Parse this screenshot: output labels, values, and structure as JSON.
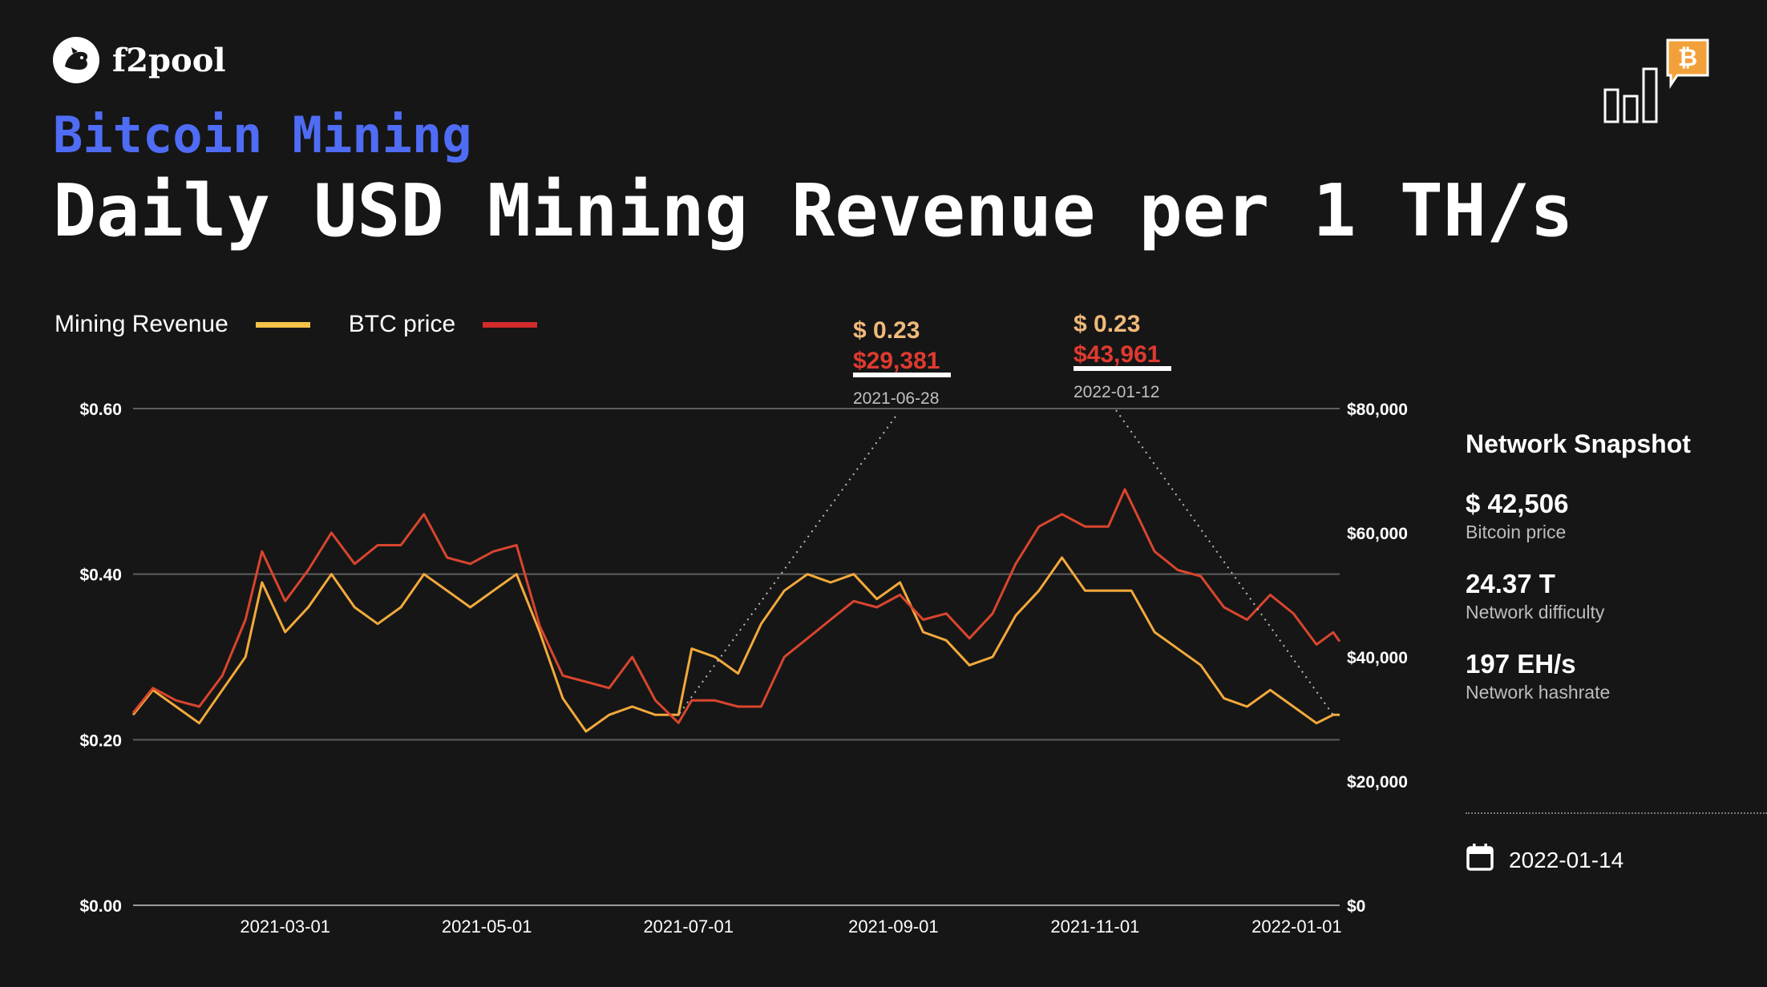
{
  "brand": {
    "name": "f2pool"
  },
  "header": {
    "subtitle": "Bitcoin Mining",
    "title": "Daily USD Mining Revenue per 1 TH/s"
  },
  "colors": {
    "background": "#161616",
    "subtitle": "#4f6cf5",
    "revenue_line": "#f2a93b",
    "btc_line": "#d9452e",
    "legend_revenue": "#f5c34a",
    "legend_btc": "#d22b2b",
    "callout_revenue": "#f0b97a",
    "callout_btc": "#e03a2f",
    "corner_badge": "#f2a13a"
  },
  "icons": {
    "brand": "fish-logo-icon",
    "corner": "bar-chart-bitcoin-icon",
    "date": "calendar-icon"
  },
  "legend": [
    {
      "label": "Mining Revenue",
      "color": "#f5c34a"
    },
    {
      "label": "BTC price",
      "color": "#d22b2b"
    }
  ],
  "annotations": [
    {
      "revenue": "$ 0.23",
      "price": "$29,381",
      "date": "2021-06-28"
    },
    {
      "revenue": "$ 0.23",
      "price": "$43,961",
      "date": "2022-01-12"
    }
  ],
  "snapshot": {
    "title": "Network Snapshot",
    "items": [
      {
        "value": "$ 42,506",
        "label": "Bitcoin price"
      },
      {
        "value": "24.37 T",
        "label": "Network difficulty"
      },
      {
        "value": "197 EH/s",
        "label": "Network hashrate"
      }
    ],
    "date": "2022-01-14"
  },
  "chart_data": {
    "type": "line",
    "x_start": "2021-01-14",
    "x_end": "2022-01-14",
    "x_ticks": [
      "2021-03-01",
      "2021-05-01",
      "2021-07-01",
      "2021-09-01",
      "2021-11-01",
      "2022-01-01"
    ],
    "y_left": {
      "label": "",
      "range": [
        0,
        0.6
      ],
      "ticks": [
        "$0.00",
        "$0.20",
        "$0.40",
        "$0.60"
      ],
      "tick_values": [
        0,
        0.2,
        0.4,
        0.6
      ]
    },
    "y_right": {
      "label": "",
      "range": [
        0,
        80000
      ],
      "ticks": [
        "$0",
        "$20,000",
        "$40,000",
        "$60,000",
        "$80,000"
      ],
      "tick_values": [
        0,
        20000,
        40000,
        60000,
        80000
      ]
    },
    "grid": true,
    "series": [
      {
        "name": "Mining Revenue",
        "axis": "left",
        "points": [
          [
            "2021-01-14",
            0.23
          ],
          [
            "2021-01-20",
            0.26
          ],
          [
            "2021-01-27",
            0.24
          ],
          [
            "2021-02-03",
            0.22
          ],
          [
            "2021-02-10",
            0.26
          ],
          [
            "2021-02-17",
            0.3
          ],
          [
            "2021-02-22",
            0.39
          ],
          [
            "2021-03-01",
            0.33
          ],
          [
            "2021-03-08",
            0.36
          ],
          [
            "2021-03-15",
            0.4
          ],
          [
            "2021-03-22",
            0.36
          ],
          [
            "2021-03-29",
            0.34
          ],
          [
            "2021-04-05",
            0.36
          ],
          [
            "2021-04-12",
            0.4
          ],
          [
            "2021-04-19",
            0.38
          ],
          [
            "2021-04-26",
            0.36
          ],
          [
            "2021-05-03",
            0.38
          ],
          [
            "2021-05-10",
            0.4
          ],
          [
            "2021-05-17",
            0.33
          ],
          [
            "2021-05-24",
            0.25
          ],
          [
            "2021-05-31",
            0.21
          ],
          [
            "2021-06-07",
            0.23
          ],
          [
            "2021-06-14",
            0.24
          ],
          [
            "2021-06-21",
            0.23
          ],
          [
            "2021-06-28",
            0.23
          ],
          [
            "2021-07-02",
            0.31
          ],
          [
            "2021-07-09",
            0.3
          ],
          [
            "2021-07-16",
            0.28
          ],
          [
            "2021-07-23",
            0.34
          ],
          [
            "2021-07-30",
            0.38
          ],
          [
            "2021-08-06",
            0.4
          ],
          [
            "2021-08-13",
            0.39
          ],
          [
            "2021-08-20",
            0.4
          ],
          [
            "2021-08-27",
            0.37
          ],
          [
            "2021-09-03",
            0.39
          ],
          [
            "2021-09-10",
            0.33
          ],
          [
            "2021-09-17",
            0.32
          ],
          [
            "2021-09-24",
            0.29
          ],
          [
            "2021-10-01",
            0.3
          ],
          [
            "2021-10-08",
            0.35
          ],
          [
            "2021-10-15",
            0.38
          ],
          [
            "2021-10-22",
            0.42
          ],
          [
            "2021-10-29",
            0.38
          ],
          [
            "2021-11-05",
            0.38
          ],
          [
            "2021-11-12",
            0.38
          ],
          [
            "2021-11-19",
            0.33
          ],
          [
            "2021-11-26",
            0.31
          ],
          [
            "2021-12-03",
            0.29
          ],
          [
            "2021-12-10",
            0.25
          ],
          [
            "2021-12-17",
            0.24
          ],
          [
            "2021-12-24",
            0.26
          ],
          [
            "2021-12-31",
            0.24
          ],
          [
            "2022-01-07",
            0.22
          ],
          [
            "2022-01-12",
            0.23
          ],
          [
            "2022-01-14",
            0.23
          ]
        ]
      },
      {
        "name": "BTC price",
        "axis": "right",
        "points": [
          [
            "2021-01-14",
            31000
          ],
          [
            "2021-01-20",
            35000
          ],
          [
            "2021-01-27",
            33000
          ],
          [
            "2021-02-03",
            32000
          ],
          [
            "2021-02-10",
            37000
          ],
          [
            "2021-02-17",
            46000
          ],
          [
            "2021-02-22",
            57000
          ],
          [
            "2021-03-01",
            49000
          ],
          [
            "2021-03-08",
            54000
          ],
          [
            "2021-03-15",
            60000
          ],
          [
            "2021-03-22",
            55000
          ],
          [
            "2021-03-29",
            58000
          ],
          [
            "2021-04-05",
            58000
          ],
          [
            "2021-04-12",
            63000
          ],
          [
            "2021-04-19",
            56000
          ],
          [
            "2021-04-26",
            55000
          ],
          [
            "2021-05-03",
            57000
          ],
          [
            "2021-05-10",
            58000
          ],
          [
            "2021-05-17",
            45000
          ],
          [
            "2021-05-24",
            37000
          ],
          [
            "2021-05-31",
            36000
          ],
          [
            "2021-06-07",
            35000
          ],
          [
            "2021-06-14",
            40000
          ],
          [
            "2021-06-21",
            33000
          ],
          [
            "2021-06-28",
            29381
          ],
          [
            "2021-07-02",
            33000
          ],
          [
            "2021-07-09",
            33000
          ],
          [
            "2021-07-16",
            32000
          ],
          [
            "2021-07-23",
            32000
          ],
          [
            "2021-07-30",
            40000
          ],
          [
            "2021-08-06",
            43000
          ],
          [
            "2021-08-13",
            46000
          ],
          [
            "2021-08-20",
            49000
          ],
          [
            "2021-08-27",
            48000
          ],
          [
            "2021-09-03",
            50000
          ],
          [
            "2021-09-10",
            46000
          ],
          [
            "2021-09-17",
            47000
          ],
          [
            "2021-09-24",
            43000
          ],
          [
            "2021-10-01",
            47000
          ],
          [
            "2021-10-08",
            55000
          ],
          [
            "2021-10-15",
            61000
          ],
          [
            "2021-10-22",
            63000
          ],
          [
            "2021-10-29",
            61000
          ],
          [
            "2021-11-05",
            61000
          ],
          [
            "2021-11-10",
            67000
          ],
          [
            "2021-11-19",
            57000
          ],
          [
            "2021-11-26",
            54000
          ],
          [
            "2021-12-03",
            53000
          ],
          [
            "2021-12-10",
            48000
          ],
          [
            "2021-12-17",
            46000
          ],
          [
            "2021-12-24",
            50000
          ],
          [
            "2021-12-31",
            47000
          ],
          [
            "2022-01-07",
            42000
          ],
          [
            "2022-01-12",
            43961
          ],
          [
            "2022-01-14",
            42506
          ]
        ]
      }
    ]
  }
}
